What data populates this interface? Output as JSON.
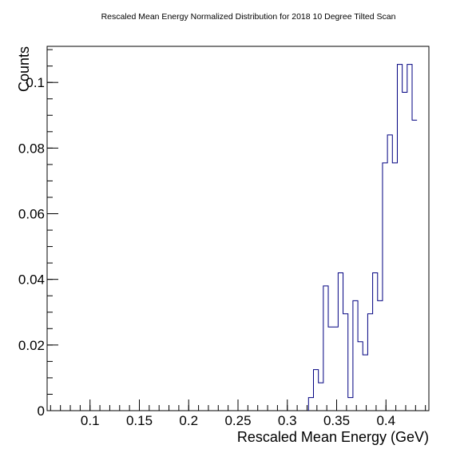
{
  "chart_data": {
    "type": "histogram",
    "title": "Rescaled Mean Energy Normalized Distribution for 2018 10 Degree Tilted Scan",
    "xlabel": "Rescaled Mean Energy (GeV)",
    "ylabel": "Counts",
    "xlim": [
      0.0565,
      0.4435
    ],
    "ylim": [
      0,
      0.111
    ],
    "x_ticks": [
      0.1,
      0.15,
      0.2,
      0.25,
      0.3,
      0.35,
      0.4
    ],
    "x_tick_labels": [
      "0.1",
      "0.15",
      "0.2",
      "0.25",
      "0.3",
      "0.35",
      "0.4"
    ],
    "y_ticks": [
      0,
      0.02,
      0.04,
      0.06,
      0.08,
      0.1
    ],
    "y_tick_labels": [
      "0",
      "0.02",
      "0.04",
      "0.06",
      "0.08",
      "0.1"
    ],
    "bin_width": 0.005,
    "bin_start": 0.3215,
    "bin_values": [
      0.004,
      0.0125,
      0.0085,
      0.038,
      0.0255,
      0.0255,
      0.042,
      0.0295,
      0.004,
      0.0335,
      0.021,
      0.017,
      0.0295,
      0.042,
      0.0335,
      0.0755,
      0.084,
      0.0755,
      0.1055,
      0.097,
      0.1055,
      0.0885
    ],
    "line_color": "#000080",
    "grid": false,
    "legend": "none"
  }
}
